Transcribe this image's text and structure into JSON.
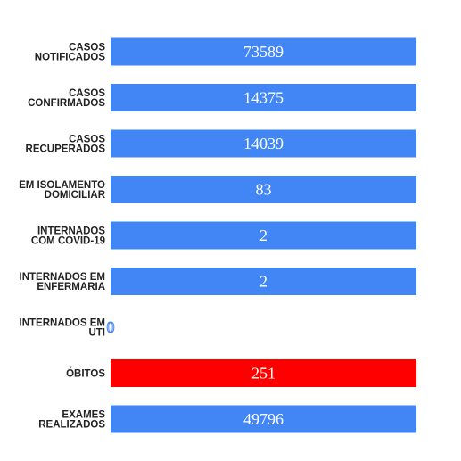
{
  "colors": {
    "default_bar": "#4285f4",
    "highlight_bar": "#ff0000",
    "label_text": "#222222",
    "value_text": "#ffffff",
    "zero_value_text": "#4285f4"
  },
  "chart_data": {
    "type": "bar",
    "orientation": "horizontal",
    "grid": false,
    "legend": "none",
    "categories": [
      [
        "CASOS",
        "NOTIFICADOS"
      ],
      [
        "CASOS",
        "CONFIRMADOS"
      ],
      [
        "CASOS",
        "RECUPERADOS"
      ],
      [
        "EM ISOLAMENTO",
        "DOMICILIAR"
      ],
      [
        "INTERNADOS",
        "COM COVID-19"
      ],
      [
        "INTERNADOS EM",
        "ENFERMARIA"
      ],
      [
        "INTERNADOS EM",
        "UTI"
      ],
      [
        "ÓBITOS"
      ],
      [
        "EXAMES",
        "REALIZADOS"
      ]
    ],
    "values": [
      73589,
      14375,
      14039,
      83,
      2,
      2,
      0,
      251,
      49796
    ],
    "bar_colors": [
      "#4285f4",
      "#4285f4",
      "#4285f4",
      "#4285f4",
      "#4285f4",
      "#4285f4",
      "#4285f4",
      "#ff0000",
      "#4285f4"
    ]
  }
}
